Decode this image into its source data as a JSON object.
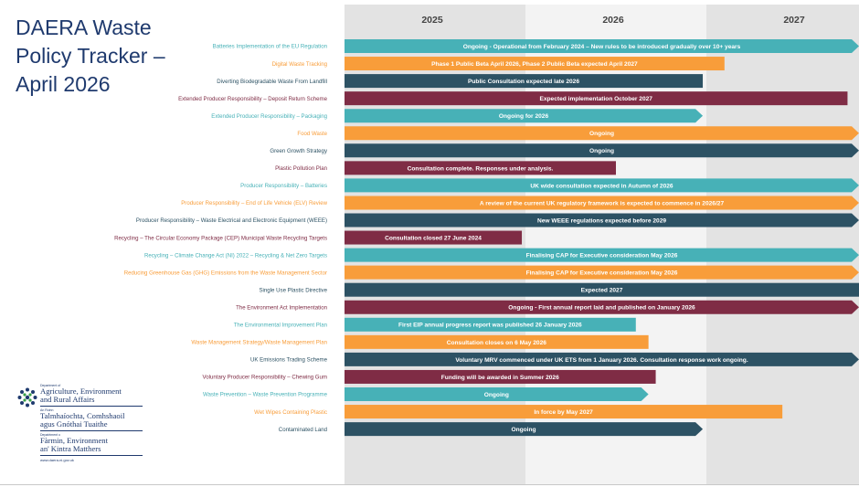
{
  "title": "DAERA Waste Policy Tracker – April 2026",
  "colors": {
    "teal": "#47b1b7",
    "orange": "#f89d3a",
    "navy": "#2d5264",
    "maroon": "#7f2c45",
    "band_dark": "#e3e3e3",
    "band_light": "#f3f3f3"
  },
  "chart_data": {
    "type": "gantt",
    "years": [
      "2025",
      "2026",
      "2027"
    ],
    "x_range": [
      "2025-01",
      "2027-12"
    ],
    "rows": [
      {
        "label": "Batteries Implementation of the EU Regulation",
        "text": "Ongoing - Operational from February 2024 – New rules to be introduced gradually over 10+ years",
        "color": "teal",
        "end": 2027.95,
        "arrow": true
      },
      {
        "label": "Digital Waste Tracking",
        "text": "Phase 1  Public Beta April 2026, Phase 2 Public Beta expected April 2027",
        "color": "orange",
        "end": 2027.1,
        "arrow": false
      },
      {
        "label": "Diverting Biodegradable Waste From Landfill",
        "text": "Public Consultation expected late 2026",
        "color": "navy",
        "end": 2026.98,
        "arrow": false
      },
      {
        "label": "Extended Producer Responsibility – Deposit Return Scheme",
        "text": "Expected implementation October 2027",
        "color": "maroon",
        "end": 2027.78,
        "arrow": false
      },
      {
        "label": "Extended Producer Responsibility – Packaging",
        "text": "Ongoing for 2026",
        "color": "teal",
        "end": 2026.98,
        "arrow": true
      },
      {
        "label": "Food Waste",
        "text": "Ongoing",
        "color": "orange",
        "end": 2027.95,
        "arrow": true
      },
      {
        "label": "Green Growth Strategy",
        "text": "Ongoing",
        "color": "navy",
        "end": 2027.95,
        "arrow": true
      },
      {
        "label": "Plastic Pollution Plan",
        "text": "Consultation complete. Responses under analysis.",
        "color": "maroon",
        "end": 2026.5,
        "arrow": false
      },
      {
        "label": "Producer Responsibility – Batteries",
        "text": "UK wide consultation expected in Autumn of 2026",
        "color": "teal",
        "end": 2027.95,
        "arrow": true
      },
      {
        "label": "Producer Responsibility – End of Life Vehicle (ELV) Review",
        "text": "A review of the current UK regulatory framework is expected to commence in 2026/27",
        "color": "orange",
        "end": 2027.95,
        "arrow": true
      },
      {
        "label": "Producer Responsibility – Waste Electrical and Electronic Equipment (WEEE)",
        "text": "New WEEE regulations expected before 2029",
        "color": "navy",
        "end": 2027.95,
        "arrow": true
      },
      {
        "label": "Recycling – The Circular Economy Package (CEP) Municipal Waste Recycling Targets",
        "text": "Consultation closed 27 June 2024",
        "color": "maroon",
        "end": 2025.98,
        "arrow": false
      },
      {
        "label": "Recycling – Climate Change Act (NI) 2022 – Recycling & Net Zero Targets",
        "text": "Finalising CAP for Executive consideration May 2026",
        "color": "teal",
        "end": 2027.95,
        "arrow": true
      },
      {
        "label": "Reducing Greenhouse Gas (GHG) Emissions from the Waste Management Sector",
        "text": "Finalising CAP for Executive consideration May 2026",
        "color": "orange",
        "end": 2027.95,
        "arrow": true
      },
      {
        "label": "Single Use Plastic Directive",
        "text": "Expected 2027",
        "color": "navy",
        "end": 2028.0,
        "arrow": false
      },
      {
        "label": "The Environment Act Implementation",
        "text": "Ongoing - First annual report laid and published on January 2026",
        "color": "maroon",
        "end": 2027.95,
        "arrow": true
      },
      {
        "label": "The Environmental Improvement Plan",
        "text": "First EIP annual progress report was published 26 January 2026",
        "color": "teal",
        "end": 2026.61,
        "arrow": false
      },
      {
        "label": "Waste Management Strategy/Waste Management Plan",
        "text": "Consultation closes on 6 May 2026",
        "color": "orange",
        "end": 2026.68,
        "arrow": false
      },
      {
        "label": "UK Emissions Trading Scheme",
        "text": "Voluntary MRV commenced under UK ETS from 1 January 2026.  Consultation response work ongoing.",
        "color": "navy",
        "end": 2027.95,
        "arrow": true
      },
      {
        "label": "Voluntary Producer Responsibility – Chewing Gum",
        "text": "Funding will be awarded in  Summer 2026",
        "color": "maroon",
        "end": 2026.72,
        "arrow": false
      },
      {
        "label": "Waste Prevention – Waste Prevention Programme",
        "text": "Ongoing",
        "color": "teal",
        "end": 2026.68,
        "arrow": true
      },
      {
        "label": "Wet Wipes Containing Plastic",
        "text": "In force by May 2027",
        "color": "orange",
        "end": 2027.42,
        "arrow": false
      },
      {
        "label": "Contaminated Land",
        "text": "Ongoing",
        "color": "navy",
        "end": 2026.98,
        "arrow": true
      }
    ]
  },
  "logo": {
    "dept_small_1": "Department of",
    "dept_big_1a": "Agriculture, Environment",
    "dept_big_1b": "and Rural Affairs",
    "dept_small_2": "An Roinn",
    "dept_big_2a": "Talmhaíochta, Comhshaoil",
    "dept_big_2b": "agus Gnóthai Tuaithe",
    "dept_small_3": "Depairtment o",
    "dept_big_3a": "Fàrmin, Environment",
    "dept_big_3b": "an' Kintra Matthers",
    "url": "www.daera-ni.gov.uk"
  }
}
